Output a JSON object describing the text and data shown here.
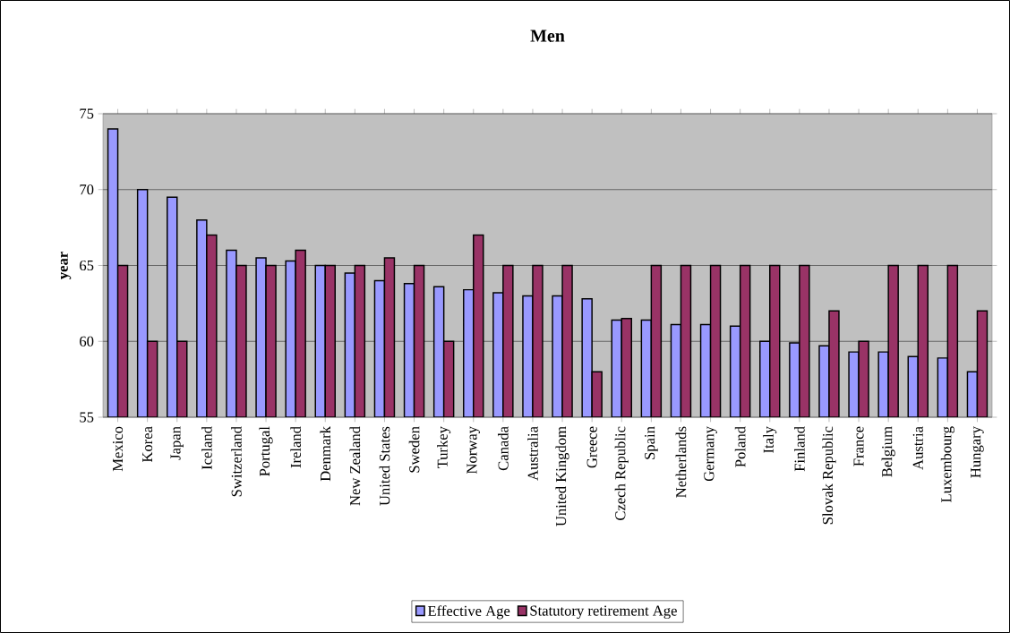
{
  "chart_data": {
    "type": "bar",
    "title": "Men",
    "ylabel": "year",
    "categories": [
      "Mexico",
      "Korea",
      "Japan",
      "Iceland",
      "Switzerland",
      "Portugal",
      "Ireland",
      "Denmark",
      "New Zealand",
      "United States",
      "Sweden",
      "Turkey",
      "Norway",
      "Canada",
      "Australia",
      "United Kingdom",
      "Greece",
      "Czech Republic",
      "Spain",
      "Netherlands",
      "Germany",
      "Poland",
      "Italy",
      "Finland",
      "Slovak Republic",
      "France",
      "Belgium",
      "Austria",
      "Luxembourg",
      "Hungary"
    ],
    "series": [
      {
        "name": "Effective Age",
        "color": "#9999ff",
        "values": [
          74,
          70,
          69.5,
          68,
          66,
          65.5,
          65.3,
          65,
          64.5,
          64,
          63.8,
          63.6,
          63.4,
          63.2,
          63,
          63,
          62.8,
          61.4,
          61.4,
          61.1,
          61.1,
          61,
          60,
          59.9,
          59.7,
          59.3,
          59.3,
          59,
          58.9,
          58
        ]
      },
      {
        "name": "Statutory retirement Age",
        "color": "#993366",
        "values": [
          65,
          60,
          60,
          67,
          65,
          65,
          66,
          65,
          65,
          65.5,
          65,
          60,
          67,
          65,
          65,
          65,
          58,
          61.5,
          65,
          65,
          65,
          65,
          65,
          65,
          62,
          60,
          65,
          65,
          65,
          62
        ]
      }
    ],
    "ylim": [
      55,
      75
    ],
    "yticks": [
      55,
      60,
      65,
      70,
      75
    ],
    "grid": "y",
    "legend": "bottom"
  }
}
